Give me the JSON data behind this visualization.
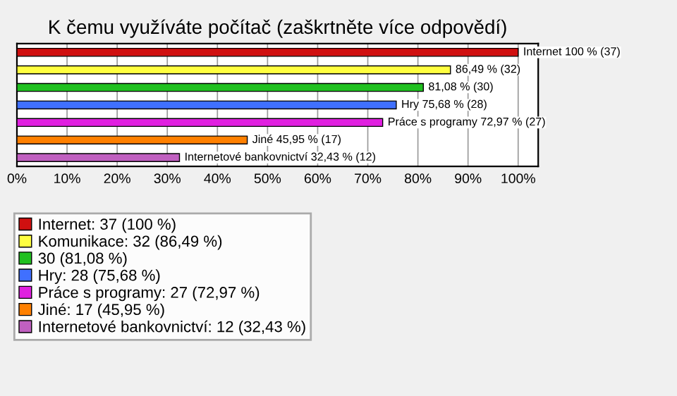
{
  "chart_data": {
    "type": "bar",
    "orientation": "horizontal",
    "title": "K čemu využíváte počítač (zaškrtněte více odpovědí)",
    "categories": [
      null,
      null,
      null,
      null,
      null,
      null,
      null
    ],
    "series": [
      {
        "name": "Internet: 37 (100 %)",
        "color": "#d01010",
        "values": [
          100,
          null,
          null,
          null,
          null,
          null,
          null
        ],
        "value_labels": [
          "Internet 100 % (37)",
          null,
          null,
          null,
          null,
          null,
          null
        ]
      },
      {
        "name": "Komunikace: 32 (86,49 %)",
        "color": "#ffff40",
        "values": [
          null,
          86.49,
          null,
          null,
          null,
          null,
          null
        ],
        "value_labels": [
          null,
          "86,49 % (32)",
          null,
          null,
          null,
          null,
          null
        ]
      },
      {
        "name": "30 (81,08 %)",
        "color": "#20c020",
        "values": [
          null,
          null,
          81.08,
          null,
          null,
          null,
          null
        ],
        "value_labels": [
          null,
          null,
          "81,08 % (30)",
          null,
          null,
          null,
          null
        ]
      },
      {
        "name": "Hry: 28 (75,68 %)",
        "color": "#4070ff",
        "values": [
          null,
          null,
          null,
          75.68,
          null,
          null,
          null
        ],
        "value_labels": [
          null,
          null,
          null,
          "Hry 75,68 % (28)",
          null,
          null,
          null
        ]
      },
      {
        "name": "Práce s programy: 27 (72,97 %)",
        "color": "#e020e0",
        "values": [
          null,
          null,
          null,
          null,
          72.97,
          null,
          null
        ],
        "value_labels": [
          null,
          null,
          null,
          null,
          "Práce s programy 72,97 % (27)",
          null,
          null
        ]
      },
      {
        "name": "Jiné: 17 (45,95 %)",
        "color": "#ff8000",
        "values": [
          null,
          null,
          null,
          null,
          null,
          45.95,
          null
        ],
        "value_labels": [
          null,
          null,
          null,
          null,
          null,
          "Jiné 45,95 % (17)",
          null
        ]
      },
      {
        "name": "Internetové bankovnictví: 12 (32,43 %)",
        "color": "#c060c0",
        "values": [
          null,
          null,
          null,
          null,
          null,
          null,
          32.43
        ],
        "value_labels": [
          null,
          null,
          null,
          null,
          null,
          null,
          "Internetové bankovnictví 32,43 % (12)"
        ]
      }
    ],
    "xlim": [
      0,
      104
    ],
    "xticks": [
      {
        "value": 0,
        "label": "0%"
      },
      {
        "value": 10,
        "label": "10%"
      },
      {
        "value": 20,
        "label": "20%"
      },
      {
        "value": 30,
        "label": "30%"
      },
      {
        "value": 40,
        "label": "40%"
      },
      {
        "value": 50,
        "label": "50%"
      },
      {
        "value": 60,
        "label": "60%"
      },
      {
        "value": 70,
        "label": "70%"
      },
      {
        "value": 80,
        "label": "80%"
      },
      {
        "value": 90,
        "label": "90%"
      },
      {
        "value": 100,
        "label": "100%"
      }
    ],
    "grid": "x",
    "legend": "bottom",
    "tick_labels": "x"
  }
}
